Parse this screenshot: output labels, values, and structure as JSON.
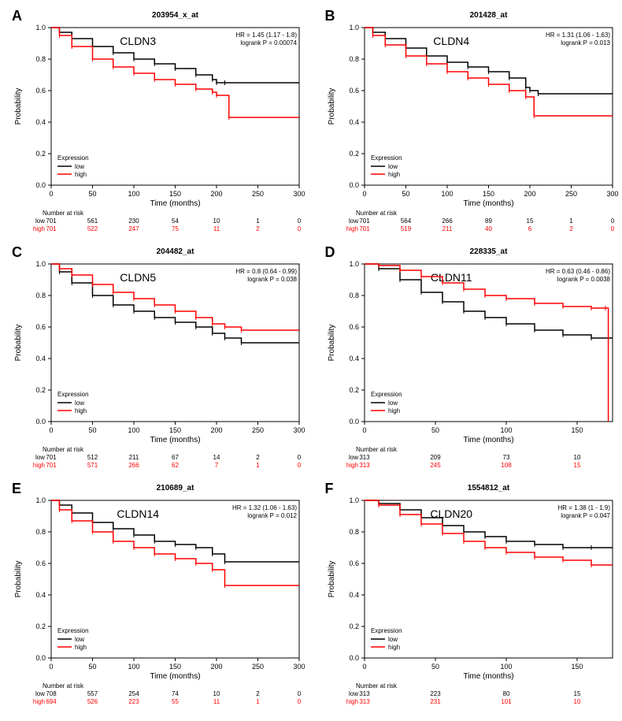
{
  "panels": [
    {
      "letter": "A",
      "probe": "203954_x_at",
      "gene": "CLDN3",
      "hr": "HR = 1.45 (1.17 - 1.8)",
      "logrank": "logrank P = 0.00074",
      "xmax": 300,
      "xticks": [
        0,
        50,
        100,
        150,
        200,
        250,
        300
      ],
      "low_color": "#000000",
      "high_color": "#ff0000",
      "low_curve": [
        [
          0,
          1.0
        ],
        [
          10,
          0.97
        ],
        [
          25,
          0.93
        ],
        [
          50,
          0.88
        ],
        [
          75,
          0.84
        ],
        [
          100,
          0.8
        ],
        [
          125,
          0.77
        ],
        [
          150,
          0.74
        ],
        [
          175,
          0.7
        ],
        [
          195,
          0.67
        ],
        [
          200,
          0.65
        ],
        [
          210,
          0.65
        ],
        [
          300,
          0.65
        ]
      ],
      "high_curve": [
        [
          0,
          1.0
        ],
        [
          10,
          0.95
        ],
        [
          25,
          0.88
        ],
        [
          50,
          0.8
        ],
        [
          75,
          0.75
        ],
        [
          100,
          0.71
        ],
        [
          125,
          0.67
        ],
        [
          150,
          0.64
        ],
        [
          175,
          0.61
        ],
        [
          195,
          0.59
        ],
        [
          200,
          0.57
        ],
        [
          215,
          0.43
        ],
        [
          300,
          0.43
        ]
      ],
      "risk_low": [
        "701",
        "561",
        "230",
        "54",
        "10",
        "1",
        "0"
      ],
      "risk_high": [
        "701",
        "522",
        "247",
        "75",
        "11",
        "2",
        "0"
      ]
    },
    {
      "letter": "B",
      "probe": "201428_at",
      "gene": "CLDN4",
      "hr": "HR = 1.31 (1.06 - 1.63)",
      "logrank": "logrank P = 0.013",
      "xmax": 300,
      "xticks": [
        0,
        50,
        100,
        150,
        200,
        250,
        300
      ],
      "low_color": "#000000",
      "high_color": "#ff0000",
      "low_curve": [
        [
          0,
          1.0
        ],
        [
          10,
          0.97
        ],
        [
          25,
          0.93
        ],
        [
          50,
          0.87
        ],
        [
          75,
          0.82
        ],
        [
          100,
          0.78
        ],
        [
          125,
          0.75
        ],
        [
          150,
          0.72
        ],
        [
          175,
          0.68
        ],
        [
          195,
          0.62
        ],
        [
          200,
          0.6
        ],
        [
          210,
          0.58
        ],
        [
          300,
          0.58
        ]
      ],
      "high_curve": [
        [
          0,
          1.0
        ],
        [
          10,
          0.95
        ],
        [
          25,
          0.89
        ],
        [
          50,
          0.82
        ],
        [
          75,
          0.77
        ],
        [
          100,
          0.72
        ],
        [
          125,
          0.68
        ],
        [
          150,
          0.64
        ],
        [
          175,
          0.6
        ],
        [
          195,
          0.56
        ],
        [
          205,
          0.44
        ],
        [
          300,
          0.44
        ]
      ],
      "risk_low": [
        "701",
        "564",
        "266",
        "89",
        "15",
        "1",
        "0"
      ],
      "risk_high": [
        "701",
        "519",
        "211",
        "40",
        "6",
        "2",
        "0"
      ]
    },
    {
      "letter": "C",
      "probe": "204482_at",
      "gene": "CLDN5",
      "hr": "HR = 0.8 (0.64 - 0.99)",
      "logrank": "logrank P = 0.038",
      "xmax": 300,
      "xticks": [
        0,
        50,
        100,
        150,
        200,
        250,
        300
      ],
      "low_color": "#000000",
      "high_color": "#ff0000",
      "low_curve": [
        [
          0,
          1.0
        ],
        [
          10,
          0.95
        ],
        [
          25,
          0.88
        ],
        [
          50,
          0.8
        ],
        [
          75,
          0.74
        ],
        [
          100,
          0.7
        ],
        [
          125,
          0.66
        ],
        [
          150,
          0.63
        ],
        [
          175,
          0.6
        ],
        [
          195,
          0.56
        ],
        [
          210,
          0.53
        ],
        [
          230,
          0.5
        ],
        [
          300,
          0.5
        ]
      ],
      "high_curve": [
        [
          0,
          1.0
        ],
        [
          10,
          0.97
        ],
        [
          25,
          0.93
        ],
        [
          50,
          0.87
        ],
        [
          75,
          0.82
        ],
        [
          100,
          0.78
        ],
        [
          125,
          0.74
        ],
        [
          150,
          0.7
        ],
        [
          175,
          0.66
        ],
        [
          195,
          0.62
        ],
        [
          210,
          0.6
        ],
        [
          230,
          0.58
        ],
        [
          300,
          0.58
        ]
      ],
      "risk_low": [
        "701",
        "512",
        "211",
        "67",
        "14",
        "2",
        "0"
      ],
      "risk_high": [
        "701",
        "571",
        "266",
        "62",
        "7",
        "1",
        "0"
      ]
    },
    {
      "letter": "D",
      "probe": "228335_at",
      "gene": "CLDN11",
      "hr": "HR = 0.63 (0.46 - 0.86)",
      "logrank": "logrank P = 0.0038",
      "xmax": 175,
      "xticks": [
        0,
        50,
        100,
        150
      ],
      "low_color": "#000000",
      "high_color": "#ff0000",
      "low_curve": [
        [
          0,
          1.0
        ],
        [
          10,
          0.97
        ],
        [
          25,
          0.9
        ],
        [
          40,
          0.82
        ],
        [
          55,
          0.76
        ],
        [
          70,
          0.7
        ],
        [
          85,
          0.66
        ],
        [
          100,
          0.62
        ],
        [
          120,
          0.58
        ],
        [
          140,
          0.55
        ],
        [
          160,
          0.53
        ],
        [
          175,
          0.53
        ]
      ],
      "high_curve": [
        [
          0,
          1.0
        ],
        [
          10,
          0.99
        ],
        [
          25,
          0.96
        ],
        [
          40,
          0.92
        ],
        [
          55,
          0.88
        ],
        [
          70,
          0.84
        ],
        [
          85,
          0.8
        ],
        [
          100,
          0.78
        ],
        [
          120,
          0.75
        ],
        [
          140,
          0.73
        ],
        [
          160,
          0.72
        ],
        [
          170,
          0.72
        ],
        [
          172,
          0.0
        ]
      ],
      "risk_low": [
        "313",
        "209",
        "73",
        "10"
      ],
      "risk_high": [
        "313",
        "245",
        "108",
        "15"
      ]
    },
    {
      "letter": "E",
      "probe": "210689_at",
      "gene": "CLDN14",
      "hr": "HR = 1.32 (1.06 - 1.63)",
      "logrank": "logrank P = 0.012",
      "xmax": 300,
      "xticks": [
        0,
        50,
        100,
        150,
        200,
        250,
        300
      ],
      "low_color": "#000000",
      "high_color": "#ff0000",
      "low_curve": [
        [
          0,
          1.0
        ],
        [
          10,
          0.97
        ],
        [
          25,
          0.92
        ],
        [
          50,
          0.86
        ],
        [
          75,
          0.82
        ],
        [
          100,
          0.78
        ],
        [
          125,
          0.74
        ],
        [
          150,
          0.72
        ],
        [
          175,
          0.7
        ],
        [
          195,
          0.66
        ],
        [
          210,
          0.61
        ],
        [
          300,
          0.61
        ]
      ],
      "high_curve": [
        [
          0,
          1.0
        ],
        [
          10,
          0.94
        ],
        [
          25,
          0.87
        ],
        [
          50,
          0.8
        ],
        [
          75,
          0.74
        ],
        [
          100,
          0.7
        ],
        [
          125,
          0.66
        ],
        [
          150,
          0.63
        ],
        [
          175,
          0.6
        ],
        [
          195,
          0.56
        ],
        [
          210,
          0.46
        ],
        [
          300,
          0.46
        ]
      ],
      "risk_low": [
        "708",
        "557",
        "254",
        "74",
        "10",
        "2",
        "0"
      ],
      "risk_high": [
        "694",
        "526",
        "223",
        "55",
        "11",
        "1",
        "0"
      ]
    },
    {
      "letter": "F",
      "probe": "1554812_at",
      "gene": "CLDN20",
      "hr": "HR = 1.38 (1 - 1.9)",
      "logrank": "logrank P = 0.047",
      "xmax": 175,
      "xticks": [
        0,
        50,
        100,
        150
      ],
      "low_color": "#000000",
      "high_color": "#ff0000",
      "low_curve": [
        [
          0,
          1.0
        ],
        [
          10,
          0.98
        ],
        [
          25,
          0.94
        ],
        [
          40,
          0.89
        ],
        [
          55,
          0.84
        ],
        [
          70,
          0.8
        ],
        [
          85,
          0.77
        ],
        [
          100,
          0.74
        ],
        [
          120,
          0.72
        ],
        [
          140,
          0.7
        ],
        [
          160,
          0.7
        ],
        [
          175,
          0.7
        ]
      ],
      "high_curve": [
        [
          0,
          1.0
        ],
        [
          10,
          0.97
        ],
        [
          25,
          0.91
        ],
        [
          40,
          0.85
        ],
        [
          55,
          0.79
        ],
        [
          70,
          0.74
        ],
        [
          85,
          0.7
        ],
        [
          100,
          0.67
        ],
        [
          120,
          0.64
        ],
        [
          140,
          0.62
        ],
        [
          160,
          0.59
        ],
        [
          175,
          0.59
        ]
      ],
      "risk_low": [
        "313",
        "223",
        "80",
        "15"
      ],
      "risk_high": [
        "313",
        "231",
        "101",
        "10"
      ]
    }
  ],
  "yticks": [
    0.0,
    0.2,
    0.4,
    0.6,
    0.8,
    1.0
  ],
  "ylabel": "Probability",
  "xlabel": "Time (months)",
  "risk_title": "Number at risk",
  "legend_title": "Expression",
  "legend_low": "low",
  "legend_high": "high",
  "low_prefix": "low",
  "high_prefix": "high"
}
